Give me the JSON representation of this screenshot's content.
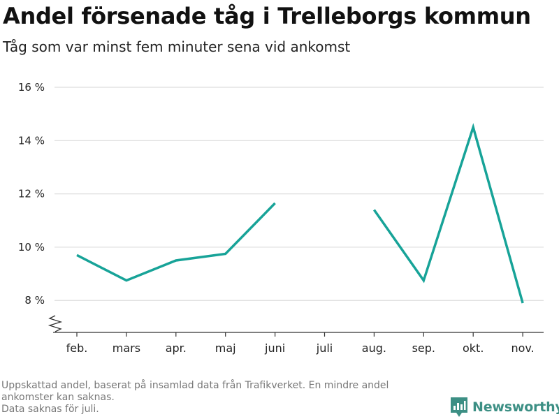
{
  "header": {
    "title": "Andel försenade tåg i Trelleborgs kommun",
    "subtitle": "Tåg som var minst fem minuter sena vid ankomst"
  },
  "chart_data": {
    "type": "line",
    "categories": [
      "feb.",
      "mars",
      "apr.",
      "maj",
      "juni",
      "juli",
      "aug.",
      "sep.",
      "okt.",
      "nov."
    ],
    "series": [
      {
        "values": [
          9.7,
          8.75,
          9.5,
          9.75,
          11.65,
          null,
          11.4,
          8.75,
          14.5,
          7.9
        ]
      }
    ],
    "y_ticks": [
      8,
      10,
      12,
      14,
      16
    ],
    "y_tick_labels": [
      "8 %",
      "10 %",
      "12 %",
      "14 %",
      "16 %"
    ],
    "ylim": [
      6.8,
      16
    ],
    "y_axis_break": true,
    "grid": "horizontal",
    "line_color": "#17a398"
  },
  "footer": {
    "note_line1": "Uppskattad andel, baserat på insamlad data från Trafikverket. En mindre andel ankomster kan saknas.",
    "note_line2": "Data saknas för juli.",
    "brand": "Newsworthy",
    "brand_color": "#3c8f84"
  }
}
